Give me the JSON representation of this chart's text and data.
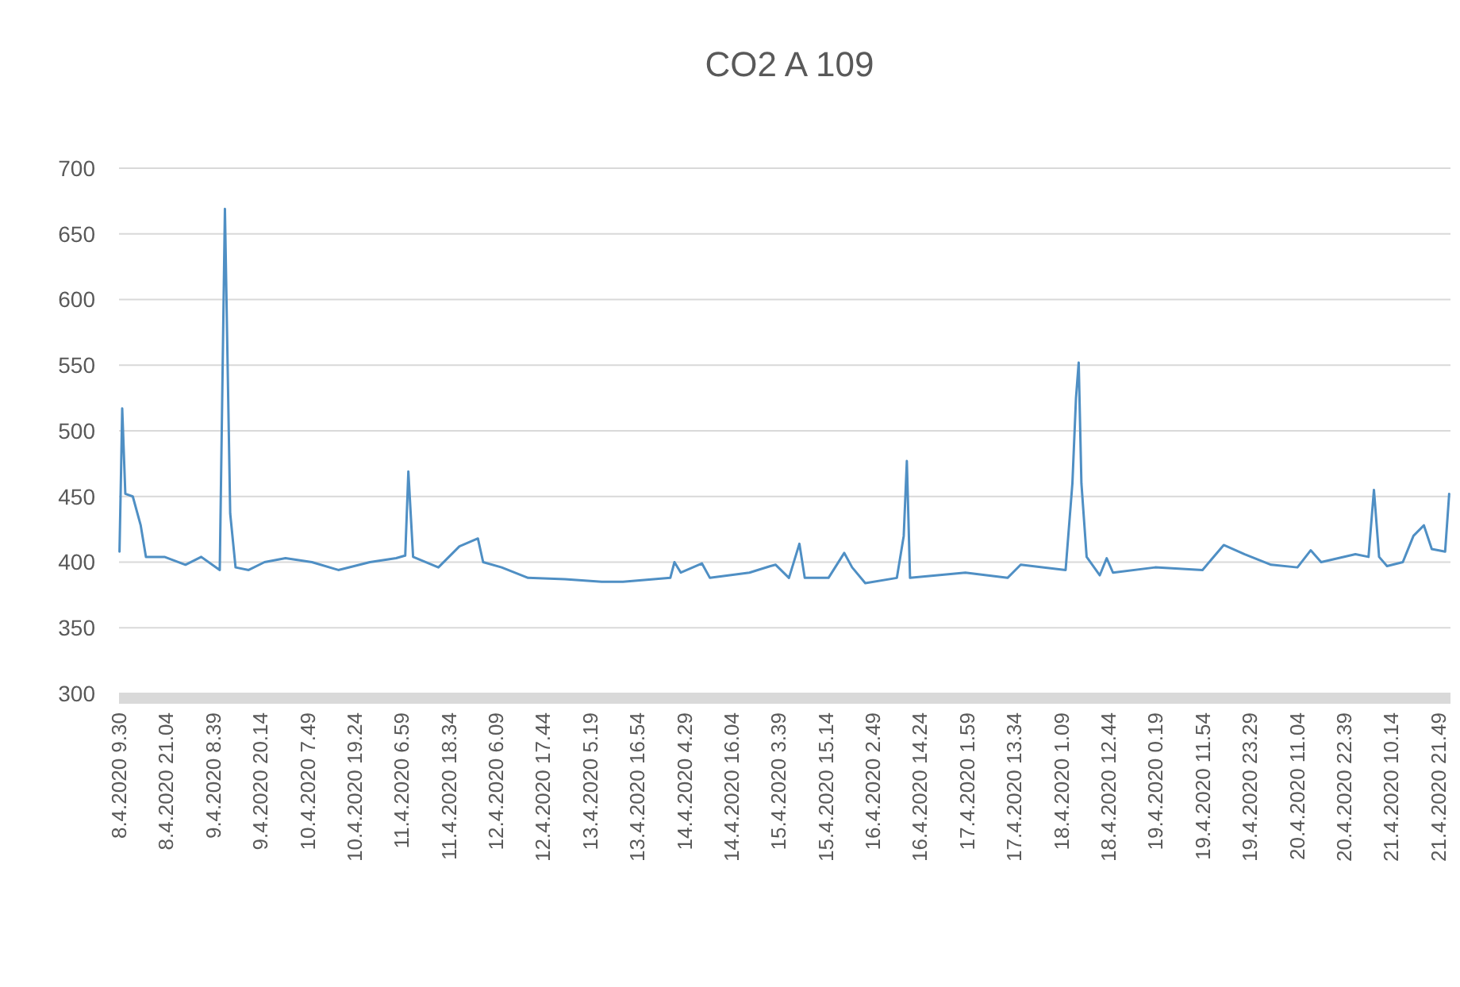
{
  "chart_data": {
    "type": "line",
    "title": "CO2 A 109",
    "x": [
      "2020-04-08T09:37",
      "2020-04-08T10:00",
      "2020-04-08T10:17",
      "2020-04-08T11:03",
      "2020-04-08T12:53",
      "2020-04-08T14:50",
      "2020-04-08T16:07",
      "2020-04-08T20:40",
      "2020-04-09T01:50",
      "2020-04-09T05:43",
      "2020-04-09T10:16",
      "2020-04-09T11:32",
      "2020-04-09T12:50",
      "2020-04-09T14:09",
      "2020-04-09T17:22",
      "2020-04-09T21:16",
      "2020-04-10T02:26",
      "2020-04-10T08:55",
      "2020-04-10T15:25",
      "2020-04-10T23:11",
      "2020-04-11T05:38",
      "2020-04-11T07:52",
      "2020-04-11T08:38",
      "2020-04-11T09:48",
      "2020-04-11T16:01",
      "2020-04-11T21:11",
      "2020-04-12T01:44",
      "2020-04-12T03:01",
      "2020-04-12T07:34",
      "2020-04-12T14:04",
      "2020-04-12T23:07",
      "2020-04-13T08:10",
      "2020-04-13T13:23",
      "2020-04-14T01:02",
      "2020-04-14T02:03",
      "2020-04-14T03:37",
      "2020-04-14T08:49",
      "2020-04-14T10:46",
      "2020-04-14T20:29",
      "2020-04-15T01:38",
      "2020-04-15T02:56",
      "2020-04-15T06:12",
      "2020-04-15T08:46",
      "2020-04-15T10:05",
      "2020-04-15T15:55",
      "2020-04-15T19:48",
      "2020-04-15T21:44",
      "2020-04-16T00:58",
      "2020-04-16T08:44",
      "2020-04-16T10:25",
      "2020-04-16T11:11",
      "2020-04-16T11:58",
      "2020-04-17T01:35",
      "2020-04-17T11:56",
      "2020-04-17T15:10",
      "2020-04-18T02:13",
      "2020-04-18T03:53",
      "2020-04-18T04:46",
      "2020-04-18T05:26",
      "2020-04-18T06:06",
      "2020-04-18T07:23",
      "2020-04-18T10:37",
      "2020-04-18T12:19",
      "2020-04-18T13:52",
      "2020-04-19T00:13",
      "2020-04-19T11:52",
      "2020-04-19T17:05",
      "2020-04-19T22:15",
      "2020-04-20T04:44",
      "2020-04-20T11:12",
      "2020-04-20T14:28",
      "2020-04-20T17:02",
      "2020-04-21T01:28",
      "2020-04-21T04:41",
      "2020-04-21T06:01",
      "2020-04-21T07:17",
      "2020-04-21T09:14",
      "2020-04-21T13:07",
      "2020-04-21T15:44",
      "2020-04-21T18:18",
      "2020-04-21T20:14",
      "2020-04-21T23:31",
      "2020-04-22T00:31"
    ],
    "series": [
      {
        "color": "#4f8fc4",
        "values": [
          408,
          469,
          517,
          452,
          450,
          428,
          404,
          404,
          398,
          404,
          394,
          669,
          437,
          396,
          394,
          400,
          403,
          400,
          394,
          400,
          403,
          405,
          469,
          404,
          396,
          412,
          418,
          400,
          396,
          388,
          387,
          385,
          385,
          388,
          400,
          392,
          399,
          388,
          392,
          397,
          398,
          388,
          414,
          388,
          388,
          407,
          396,
          384,
          388,
          420,
          477,
          388,
          392,
          388,
          398,
          394,
          460,
          525,
          552,
          460,
          404,
          390,
          403,
          392,
          396,
          394,
          413,
          406,
          398,
          396,
          409,
          400,
          406,
          404,
          455,
          404,
          397,
          400,
          420,
          428,
          410,
          408,
          452
        ]
      }
    ],
    "xlim": [
      "2020-04-08T09:30",
      "2020-04-22T00:50"
    ],
    "xticks": [
      {
        "value": "2020-04-08T09:30",
        "label": "8.4.2020 9.30"
      },
      {
        "value": "2020-04-08T21:04",
        "label": "8.4.2020 21.04"
      },
      {
        "value": "2020-04-09T08:39",
        "label": "9.4.2020 8.39"
      },
      {
        "value": "2020-04-09T20:14",
        "label": "9.4.2020 20.14"
      },
      {
        "value": "2020-04-10T07:49",
        "label": "10.4.2020 7.49"
      },
      {
        "value": "2020-04-10T19:24",
        "label": "10.4.2020 19.24"
      },
      {
        "value": "2020-04-11T06:59",
        "label": "11.4.2020 6.59"
      },
      {
        "value": "2020-04-11T18:34",
        "label": "11.4.2020 18.34"
      },
      {
        "value": "2020-04-12T06:09",
        "label": "12.4.2020 6.09"
      },
      {
        "value": "2020-04-12T17:44",
        "label": "12.4.2020 17.44"
      },
      {
        "value": "2020-04-13T05:19",
        "label": "13.4.2020 5.19"
      },
      {
        "value": "2020-04-13T16:54",
        "label": "13.4.2020 16.54"
      },
      {
        "value": "2020-04-14T04:29",
        "label": "14.4.2020 4.29"
      },
      {
        "value": "2020-04-14T16:04",
        "label": "14.4.2020 16.04"
      },
      {
        "value": "2020-04-15T03:39",
        "label": "15.4.2020 3.39"
      },
      {
        "value": "2020-04-15T15:14",
        "label": "15.4.2020 15.14"
      },
      {
        "value": "2020-04-16T02:49",
        "label": "16.4.2020 2.49"
      },
      {
        "value": "2020-04-16T14:24",
        "label": "16.4.2020 14.24"
      },
      {
        "value": "2020-04-17T01:59",
        "label": "17.4.2020 1.59"
      },
      {
        "value": "2020-04-17T13:34",
        "label": "17.4.2020 13.34"
      },
      {
        "value": "2020-04-18T01:09",
        "label": "18.4.2020 1.09"
      },
      {
        "value": "2020-04-18T12:44",
        "label": "18.4.2020 12.44"
      },
      {
        "value": "2020-04-19T00:19",
        "label": "19.4.2020 0.19"
      },
      {
        "value": "2020-04-19T11:54",
        "label": "19.4.2020 11.54"
      },
      {
        "value": "2020-04-19T23:29",
        "label": "19.4.2020 23.29"
      },
      {
        "value": "2020-04-20T11:04",
        "label": "20.4.2020 11.04"
      },
      {
        "value": "2020-04-20T22:39",
        "label": "20.4.2020 22.39"
      },
      {
        "value": "2020-04-21T10:14",
        "label": "21.4.2020 10.14"
      },
      {
        "value": "2020-04-21T21:49",
        "label": "21.4.2020 21.49"
      }
    ],
    "ylim": [
      300,
      700
    ],
    "yticks": [
      300,
      350,
      400,
      450,
      500,
      550,
      600,
      650,
      700
    ],
    "grid": "y",
    "marker": "none",
    "line_style": "solid"
  }
}
